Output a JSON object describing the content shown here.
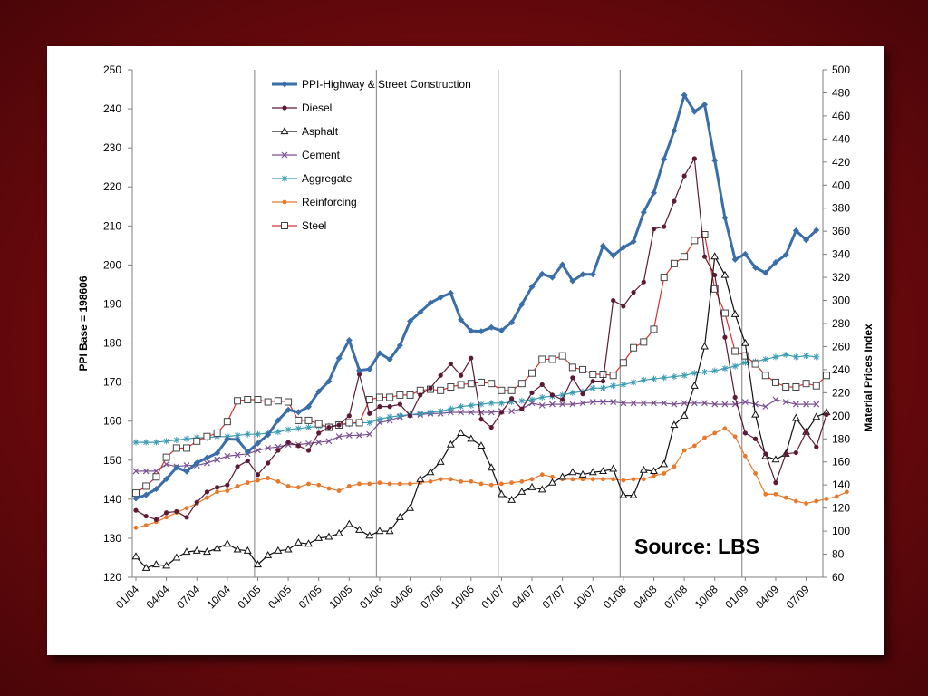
{
  "chart_data": {
    "type": "line",
    "title": "",
    "ylabel": "PPI Base = 198606",
    "y2label": "Material Prices Index",
    "ylim": [
      120,
      250
    ],
    "y2lim": [
      60,
      500
    ],
    "yticks": [
      120,
      130,
      140,
      150,
      160,
      170,
      180,
      190,
      200,
      210,
      220,
      230,
      240,
      250
    ],
    "y2ticks": [
      60,
      80,
      100,
      120,
      140,
      160,
      180,
      200,
      220,
      240,
      260,
      280,
      300,
      320,
      340,
      360,
      380,
      400,
      420,
      440,
      460,
      480,
      500
    ],
    "x_labels": [
      "01/04",
      "04/04",
      "07/04",
      "10/04",
      "01/05",
      "04/05",
      "07/05",
      "10/05",
      "01/06",
      "04/06",
      "07/06",
      "10/06",
      "01/07",
      "04/07",
      "07/07",
      "10/07",
      "01/08",
      "04/08",
      "07/08",
      "10/08",
      "01/09",
      "04/09",
      "07/09"
    ],
    "annotation": "Source: LBS",
    "legend_position": "top-left",
    "grid": "vertical lines at each January",
    "series": [
      {
        "name": "PPI-Highway & Street Construction",
        "axis": "left",
        "color": "#3a6ea8",
        "marker": "diamond",
        "values": [
          140.2,
          141.1,
          142.6,
          145.2,
          148.1,
          147.1,
          149.3,
          150.6,
          151.8,
          155.4,
          155.3,
          152.1,
          154.3,
          156.5,
          160.2,
          162.9,
          162.3,
          163.7,
          167.6,
          170.2,
          176.1,
          180.7,
          173.0,
          173.3,
          177.4,
          175.8,
          179.4,
          185.6,
          187.9,
          190.3,
          191.7,
          192.8,
          186.0,
          183.1,
          183.0,
          184.0,
          183.2,
          185.3,
          189.9,
          194.4,
          197.7,
          196.8,
          200.1,
          195.9,
          197.6,
          197.6,
          204.9,
          202.4,
          204.5,
          206.0,
          213.5,
          218.5,
          227.1,
          234.4,
          243.5,
          239.3,
          241.1,
          226.8,
          212.1,
          201.4,
          202.8,
          199.3,
          198.0,
          200.7,
          202.6,
          208.8,
          206.4,
          208.9
        ]
      },
      {
        "name": "Diesel",
        "axis": "right",
        "color": "#5c1a36",
        "marker": "circle",
        "values": [
          118,
          113,
          110,
          116,
          117,
          112,
          125,
          134,
          138,
          140,
          156,
          161,
          149,
          159,
          170,
          177,
          174,
          170,
          185,
          190,
          192,
          200,
          236,
          202,
          208,
          208,
          210,
          200,
          218,
          224,
          235,
          245,
          235,
          250,
          197,
          190,
          203,
          215,
          206,
          220,
          227,
          218,
          214,
          233,
          219,
          230,
          230,
          300,
          295,
          307,
          316,
          362,
          364,
          386,
          408,
          423,
          338,
          322,
          268,
          216,
          185,
          180,
          167,
          142,
          167,
          168,
          186,
          173,
          201
        ]
      },
      {
        "name": "Asphalt",
        "axis": "right",
        "color": "#111111",
        "marker": "triangle",
        "values": [
          78,
          68,
          71,
          70,
          77,
          82,
          83,
          82,
          85,
          89,
          84,
          83,
          71,
          79,
          83,
          84,
          90,
          89,
          94,
          95,
          98,
          106,
          101,
          96,
          100,
          100,
          112,
          120,
          145,
          151,
          160,
          175,
          185,
          180,
          174,
          155,
          132,
          127,
          134,
          138,
          136,
          142,
          147,
          151,
          149,
          151,
          152,
          154,
          131,
          131,
          153,
          152,
          158,
          192,
          200,
          226,
          260,
          338,
          322,
          288,
          263,
          201,
          165,
          162,
          167,
          198,
          186,
          199,
          203
        ]
      },
      {
        "name": "Cement",
        "axis": "right",
        "color": "#7a5090",
        "marker": "x",
        "values": [
          152,
          152,
          152,
          158,
          156,
          157,
          157,
          159,
          162,
          165,
          166,
          167,
          170,
          172,
          173,
          175,
          175,
          176,
          177,
          178,
          182,
          183,
          183,
          184,
          194,
          196,
          199,
          201,
          201,
          202,
          202,
          203,
          203,
          203,
          203,
          203,
          204,
          204,
          206,
          211,
          209,
          210,
          210,
          210,
          211,
          212,
          212,
          212,
          211,
          211,
          211,
          211,
          211,
          210,
          211,
          211,
          211,
          210,
          210,
          210,
          212,
          210,
          208,
          214,
          212,
          210,
          210,
          210
        ]
      },
      {
        "name": "Aggregate",
        "axis": "right",
        "color": "#3a9bb4",
        "marker": "star",
        "values": [
          177,
          177,
          177,
          178,
          179,
          180,
          181,
          181,
          182,
          182,
          183,
          184,
          184,
          185,
          186,
          188,
          189,
          190,
          191,
          191,
          192,
          193,
          194,
          194,
          197,
          199,
          200,
          201,
          202,
          203,
          204,
          206,
          208,
          209,
          210,
          211,
          211,
          212,
          213,
          214,
          216,
          217,
          218,
          220,
          221,
          224,
          224,
          226,
          227,
          229,
          231,
          232,
          233,
          234,
          235,
          237,
          238,
          239,
          241,
          243,
          246,
          247,
          249,
          251,
          253,
          251,
          252,
          251
        ]
      },
      {
        "name": "Reinforcing",
        "axis": "right",
        "color": "#e8782c",
        "marker": "dot",
        "values": [
          103,
          105,
          108,
          112,
          116,
          120,
          124,
          129,
          134,
          135,
          139,
          142,
          144,
          146,
          143,
          139,
          138,
          141,
          140,
          137,
          135,
          139,
          141,
          141,
          142,
          141,
          141,
          141,
          142,
          143,
          145,
          145,
          143,
          143,
          141,
          140,
          141,
          142,
          143,
          145,
          149,
          147,
          145,
          145,
          145,
          145,
          145,
          145,
          144,
          145,
          145,
          148,
          150,
          156,
          170,
          174,
          181,
          185,
          189,
          182,
          165,
          150,
          132,
          132,
          129,
          126,
          124,
          126,
          128,
          130,
          134
        ]
      },
      {
        "name": "Steel",
        "axis": "right",
        "color": "#d93030",
        "marker": "square",
        "values": [
          133,
          139,
          147,
          164,
          172,
          172,
          178,
          182,
          185,
          195,
          213,
          214,
          214,
          212,
          213,
          212,
          196,
          196,
          193,
          190,
          192,
          194,
          194,
          214,
          216,
          216,
          218,
          218,
          222,
          223,
          222,
          225,
          227,
          228,
          229,
          228,
          222,
          222,
          228,
          237,
          249,
          249,
          252,
          242,
          240,
          236,
          236,
          235,
          246,
          259,
          264,
          275,
          320,
          332,
          338,
          352,
          357,
          310,
          289,
          256,
          252,
          245,
          235,
          229,
          225,
          225,
          228,
          226,
          235
        ]
      }
    ]
  }
}
